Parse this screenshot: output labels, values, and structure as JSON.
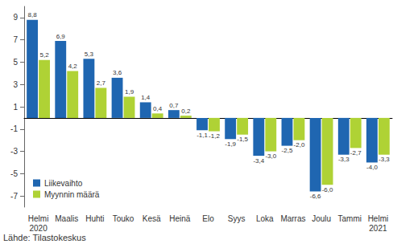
{
  "chart_data": {
    "type": "bar",
    "categories": [
      "Helmi\n2020",
      "Maalis",
      "Huhti",
      "Touko",
      "Kesä",
      "Heinä",
      "Elo",
      "Syys",
      "Loka",
      "Marras",
      "Joulu",
      "Tammi",
      "Helmi\n2021"
    ],
    "series": [
      {
        "name": "Liikevaihto",
        "color": "#1f66b1",
        "values": [
          8.8,
          6.9,
          5.3,
          3.6,
          1.4,
          0.7,
          -1.1,
          -1.9,
          -3.4,
          -2.5,
          -6.6,
          -3.3,
          -4.0
        ],
        "value_labels": [
          "8,8",
          "6,9",
          "5,3",
          "3,6",
          "1,4",
          "0,7",
          "-1,1",
          "-1,9",
          "-3,4",
          "-2,5",
          "-6,6",
          "-3,3",
          "-4,0"
        ]
      },
      {
        "name": "Myynnin määrä",
        "color": "#afd235",
        "values": [
          5.2,
          4.2,
          2.7,
          1.9,
          0.4,
          0.2,
          -1.2,
          -1.5,
          -3.0,
          -2.0,
          -6.0,
          -2.7,
          -3.3
        ],
        "value_labels": [
          "5,2",
          "4,2",
          "2,7",
          "1,9",
          "0,4",
          "0,2",
          "-1,2",
          "-1,5",
          "-3,0",
          "-2,0",
          "-6,0",
          "-2,7",
          "-3,3"
        ]
      }
    ],
    "ylim": [
      -8,
      10
    ],
    "yticks": [
      -7,
      -5,
      -3,
      -1,
      1,
      3,
      5,
      7,
      9
    ],
    "grid": false,
    "legend": "lower left",
    "data_labels": true,
    "annotation": "Lähde: Tilastokeskus"
  }
}
